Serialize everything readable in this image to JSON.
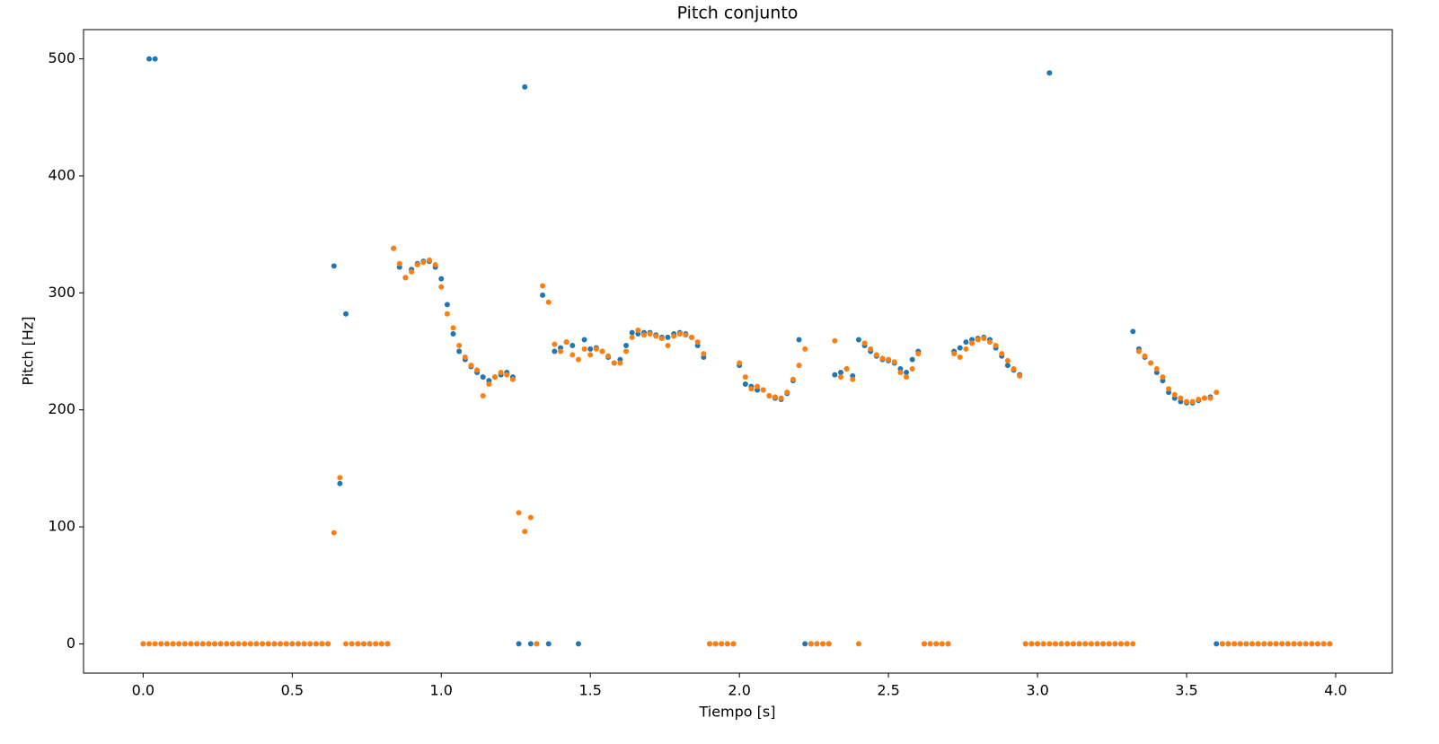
{
  "chart_data": {
    "type": "scatter",
    "title": "Pitch conjunto",
    "x_label": "Tiempo [s]",
    "y_label": "Pitch [Hz]",
    "x": [
      0,
      0.02,
      0.04,
      0.06,
      0.08,
      0.1,
      0.12,
      0.14,
      0.16,
      0.18,
      0.2,
      0.22,
      0.24,
      0.26,
      0.28,
      0.3,
      0.32,
      0.34,
      0.36,
      0.38,
      0.4,
      0.42,
      0.44,
      0.46,
      0.48,
      0.5,
      0.52,
      0.54,
      0.56,
      0.58,
      0.6,
      0.62,
      0.64,
      0.66,
      0.68,
      0.7,
      0.72,
      0.74,
      0.76,
      0.78,
      0.8,
      0.82,
      0.84,
      0.86,
      0.88,
      0.9,
      0.92,
      0.94,
      0.96,
      0.98,
      1,
      1.02,
      1.04,
      1.06,
      1.08,
      1.1,
      1.12,
      1.14,
      1.16,
      1.18,
      1.2,
      1.22,
      1.24,
      1.26,
      1.28,
      1.3,
      1.32,
      1.34,
      1.36,
      1.38,
      1.4,
      1.42,
      1.44,
      1.46,
      1.48,
      1.5,
      1.52,
      1.54,
      1.56,
      1.58,
      1.6,
      1.62,
      1.64,
      1.66,
      1.68,
      1.7,
      1.72,
      1.74,
      1.76,
      1.78,
      1.8,
      1.82,
      1.84,
      1.86,
      1.88,
      1.9,
      1.92,
      1.94,
      1.96,
      1.98,
      2,
      2.02,
      2.04,
      2.06,
      2.08,
      2.1,
      2.12,
      2.14,
      2.16,
      2.18,
      2.2,
      2.22,
      2.24,
      2.26,
      2.28,
      2.3,
      2.32,
      2.34,
      2.36,
      2.38,
      2.4,
      2.42,
      2.44,
      2.46,
      2.48,
      2.5,
      2.52,
      2.54,
      2.56,
      2.58,
      2.6,
      2.62,
      2.64,
      2.66,
      2.68,
      2.7,
      2.72,
      2.74,
      2.76,
      2.78,
      2.8,
      2.82,
      2.84,
      2.86,
      2.88,
      2.9,
      2.92,
      2.94,
      2.96,
      2.98,
      3,
      3.02,
      3.04,
      3.06,
      3.08,
      3.1,
      3.12,
      3.14,
      3.16,
      3.18,
      3.2,
      3.22,
      3.24,
      3.26,
      3.28,
      3.3,
      3.32,
      3.34,
      3.36,
      3.38,
      3.4,
      3.42,
      3.44,
      3.46,
      3.48,
      3.5,
      3.52,
      3.54,
      3.56,
      3.58,
      3.6,
      3.62,
      3.64,
      3.66,
      3.68,
      3.7,
      3.72,
      3.74,
      3.76,
      3.78,
      3.8,
      3.82,
      3.84,
      3.86,
      3.88,
      3.9,
      3.92,
      3.94,
      3.96,
      3.98
    ],
    "series": [
      {
        "color": "#1f77b4",
        "values": [
          0,
          500,
          500,
          0,
          0,
          0,
          0,
          0,
          0,
          0,
          0,
          0,
          0,
          0,
          0,
          0,
          0,
          0,
          0,
          0,
          0,
          0,
          0,
          0,
          0,
          0,
          0,
          0,
          0,
          0,
          0,
          0,
          323,
          137,
          282,
          0,
          0,
          0,
          0,
          0,
          0,
          0,
          338,
          322,
          313,
          320,
          325,
          327,
          327,
          322,
          312,
          290,
          265,
          250,
          243,
          237,
          232,
          228,
          225,
          228,
          230,
          232,
          228,
          0,
          476,
          0,
          0,
          298,
          0,
          250,
          253,
          258,
          255,
          0,
          260,
          252,
          253,
          250,
          245,
          240,
          243,
          255,
          266,
          265,
          266,
          266,
          264,
          262,
          262,
          265,
          266,
          265,
          262,
          255,
          245,
          0,
          0,
          0,
          0,
          0,
          238,
          222,
          220,
          217,
          217,
          212,
          210,
          209,
          214,
          225,
          260,
          0,
          0,
          0,
          0,
          0,
          230,
          232,
          235,
          229,
          260,
          255,
          250,
          246,
          243,
          242,
          240,
          235,
          232,
          243,
          250,
          0,
          0,
          0,
          0,
          0,
          250,
          253,
          258,
          260,
          261,
          262,
          260,
          253,
          246,
          238,
          234,
          230,
          0,
          0,
          0,
          0,
          488,
          0,
          0,
          0,
          0,
          0,
          0,
          0,
          0,
          0,
          0,
          0,
          0,
          0,
          267,
          252,
          245,
          240,
          232,
          225,
          215,
          210,
          207,
          206,
          206,
          208,
          210,
          211,
          0,
          0,
          0,
          0,
          0,
          0,
          0,
          0,
          0,
          0,
          0,
          0,
          0,
          0,
          0,
          0,
          0,
          0,
          0,
          0
        ]
      },
      {
        "color": "#ff7f0e",
        "values": [
          0,
          0,
          0,
          0,
          0,
          0,
          0,
          0,
          0,
          0,
          0,
          0,
          0,
          0,
          0,
          0,
          0,
          0,
          0,
          0,
          0,
          0,
          0,
          0,
          0,
          0,
          0,
          0,
          0,
          0,
          0,
          0,
          95,
          142,
          0,
          0,
          0,
          0,
          0,
          0,
          0,
          0,
          338,
          325,
          313,
          318,
          324,
          326,
          328,
          324,
          305,
          282,
          270,
          255,
          245,
          238,
          234,
          212,
          222,
          228,
          232,
          230,
          226,
          112,
          96,
          108,
          0,
          306,
          292,
          256,
          250,
          258,
          247,
          243,
          252,
          247,
          252,
          250,
          246,
          240,
          240,
          250,
          262,
          268,
          264,
          265,
          263,
          261,
          255,
          263,
          265,
          264,
          262,
          258,
          248,
          0,
          0,
          0,
          0,
          0,
          240,
          228,
          218,
          220,
          217,
          212,
          211,
          210,
          215,
          226,
          238,
          252,
          0,
          0,
          0,
          0,
          259,
          228,
          235,
          226,
          0,
          257,
          252,
          247,
          244,
          243,
          241,
          232,
          228,
          235,
          248,
          0,
          0,
          0,
          0,
          0,
          248,
          245,
          252,
          257,
          260,
          261,
          258,
          255,
          248,
          242,
          235,
          229,
          0,
          0,
          0,
          0,
          0,
          0,
          0,
          0,
          0,
          0,
          0,
          0,
          0,
          0,
          0,
          0,
          0,
          0,
          0,
          250,
          246,
          240,
          235,
          228,
          218,
          213,
          210,
          207,
          207,
          209,
          210,
          210,
          215,
          0,
          0,
          0,
          0,
          0,
          0,
          0,
          0,
          0,
          0,
          0,
          0,
          0,
          0,
          0,
          0,
          0,
          0,
          0
        ]
      }
    ],
    "xlim": [
      -0.2,
      4.19
    ],
    "ylim": [
      -25,
      525
    ],
    "xticks": [
      {
        "value": 0,
        "label": "0.0"
      },
      0.5,
      {
        "value": 1,
        "label": "1.0"
      },
      1.5,
      {
        "value": 2,
        "label": "2.0"
      },
      2.5,
      {
        "value": 3,
        "label": "3.0"
      },
      3.5,
      {
        "value": 4,
        "label": "4.0"
      }
    ],
    "yticks": [
      0,
      100,
      200,
      300,
      400,
      500
    ],
    "grid": false
  }
}
